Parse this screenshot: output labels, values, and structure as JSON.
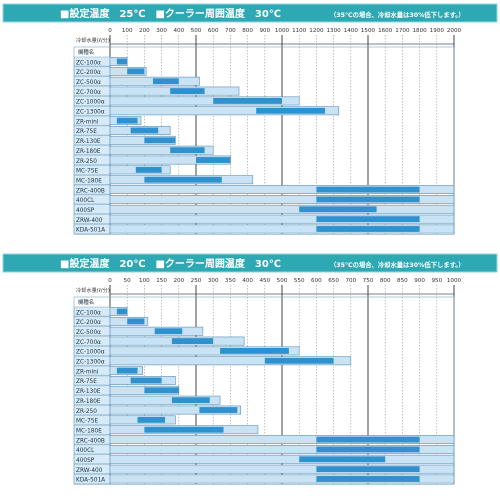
{
  "colors": {
    "header_bg": "#2ea9b4",
    "header_border": "#8fd6dc",
    "capacity_light": "#c9e3f5",
    "capacity_dark": "#2f92cf",
    "bar_border": "#5a8fb6",
    "label_bg": "#d6ebf7",
    "grid": "#999999"
  },
  "chart_data": [
    {
      "type": "bar",
      "orientation": "horizontal",
      "title": "■設定温度　25℃　■クーラー周囲温度　30℃",
      "note": "（35℃の場合、冷却水量は30%低下します。）",
      "xlabel": "冷却水量(ℓ/分)",
      "row_header": "機種名",
      "xlim": [
        0,
        2000
      ],
      "ticks": [
        0,
        100,
        200,
        300,
        400,
        500,
        600,
        700,
        800,
        900,
        1000,
        1100,
        1200,
        1300,
        1400,
        1500,
        1600,
        1700,
        1800,
        1900,
        2000
      ],
      "grid": "vertical dotted, solid every 500",
      "categories": [
        "ZC-100α",
        "ZC-200α",
        "ZC-500α",
        "ZC-700α",
        "ZC-1000α",
        "ZC-1300α",
        "ZR-mini",
        "ZR-75E",
        "ZR-130E",
        "ZR-180E",
        "ZR-250",
        "MC-75E",
        "MC-180E",
        "ZRC-400B",
        "400CL",
        "400SP",
        "ZRW-400",
        "KDA-501A"
      ],
      "series": [
        {
          "role": "capacity_range",
          "values": [
            [
              0,
              100
            ],
            [
              0,
              210
            ],
            [
              0,
              520
            ],
            [
              0,
              750
            ],
            [
              0,
              1100
            ],
            [
              0,
              1330
            ],
            [
              0,
              180
            ],
            [
              0,
              350
            ],
            [
              0,
              380
            ],
            [
              0,
              600
            ],
            [
              0,
              700
            ],
            [
              0,
              350
            ],
            [
              0,
              830
            ],
            [
              0,
              2000
            ],
            [
              0,
              2000
            ],
            [
              0,
              2000
            ],
            [
              0,
              2000
            ],
            [
              0,
              2000
            ]
          ]
        },
        {
          "role": "recommended_range",
          "values": [
            [
              40,
              100
            ],
            [
              100,
              200
            ],
            [
              250,
              400
            ],
            [
              350,
              550
            ],
            [
              600,
              1000
            ],
            [
              850,
              1250
            ],
            [
              40,
              160
            ],
            [
              120,
              280
            ],
            [
              200,
              380
            ],
            [
              350,
              550
            ],
            [
              500,
              700
            ],
            [
              150,
              300
            ],
            [
              200,
              650
            ],
            [
              1200,
              1800
            ],
            [
              1200,
              1800
            ],
            [
              1100,
              1550
            ],
            [
              1200,
              1800
            ],
            [
              1200,
              1800
            ]
          ]
        }
      ]
    },
    {
      "type": "bar",
      "orientation": "horizontal",
      "title": "■設定温度　20℃　■クーラー周囲温度　30℃",
      "note": "（35℃の場合、冷却水量は30%低下します。）",
      "xlabel": "冷却水量(ℓ/分)",
      "row_header": "機種名",
      "xlim": [
        0,
        1000
      ],
      "ticks": [
        0,
        50,
        100,
        150,
        200,
        250,
        300,
        350,
        400,
        450,
        500,
        550,
        600,
        650,
        700,
        750,
        800,
        850,
        900,
        950,
        1000
      ],
      "grid": "vertical dotted, solid every 250",
      "categories": [
        "ZC-100α",
        "ZC-200α",
        "ZC-500α",
        "ZC-700α",
        "ZC-1000α",
        "ZC-1300α",
        "ZR-mini",
        "ZR-75E",
        "ZR-130E",
        "ZR-180E",
        "ZR-250",
        "MC-75E",
        "MC-180E",
        "ZRC-400B",
        "400CL",
        "400SP",
        "ZRW-400",
        "KDA-501A"
      ],
      "series": [
        {
          "role": "capacity_range",
          "values": [
            [
              0,
              50
            ],
            [
              0,
              110
            ],
            [
              0,
              270
            ],
            [
              0,
              390
            ],
            [
              0,
              550
            ],
            [
              0,
              700
            ],
            [
              0,
              95
            ],
            [
              0,
              190
            ],
            [
              0,
              200
            ],
            [
              0,
              320
            ],
            [
              0,
              380
            ],
            [
              0,
              190
            ],
            [
              0,
              430
            ],
            [
              0,
              1000
            ],
            [
              0,
              1000
            ],
            [
              0,
              1000
            ],
            [
              0,
              1000
            ],
            [
              0,
              1000
            ]
          ]
        },
        {
          "role": "recommended_range",
          "values": [
            [
              20,
              50
            ],
            [
              50,
              100
            ],
            [
              130,
              210
            ],
            [
              180,
              300
            ],
            [
              320,
              520
            ],
            [
              450,
              650
            ],
            [
              20,
              80
            ],
            [
              60,
              150
            ],
            [
              100,
              200
            ],
            [
              180,
              290
            ],
            [
              260,
              370
            ],
            [
              80,
              160
            ],
            [
              100,
              330
            ],
            [
              600,
              900
            ],
            [
              600,
              900
            ],
            [
              550,
              800
            ],
            [
              600,
              900
            ],
            [
              600,
              900
            ]
          ]
        }
      ]
    }
  ]
}
